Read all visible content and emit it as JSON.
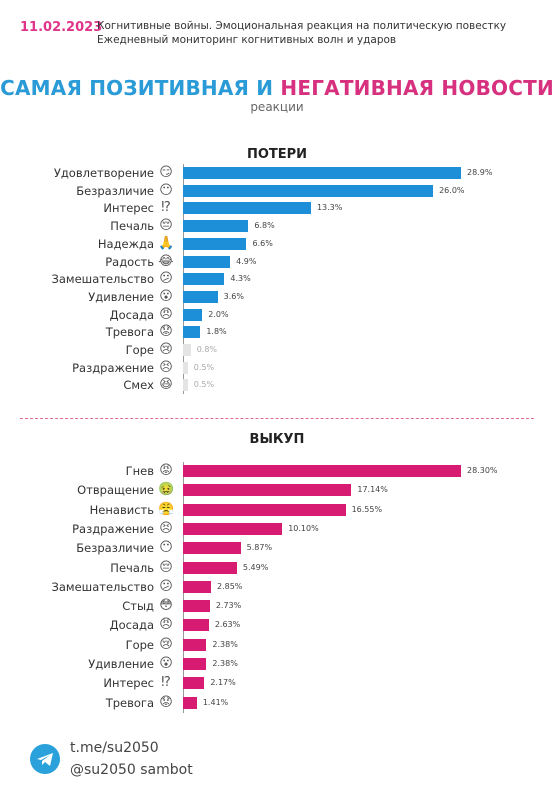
{
  "header": {
    "date": "11.02.2023",
    "line1": "Когнитивные войны. Эмоциональная реакция на политическую повестку",
    "line2": "Ежедневный мониторинг когнитивных волн и ударов"
  },
  "title_part1": "САМАЯ ПОЗИТИВНАЯ И ",
  "title_part2": "НЕГАТИВНАЯ НОВОСТИ",
  "subtitle": "реакции",
  "colors": {
    "date": "#e0338a",
    "title_gradient_start": "#2a9bd6",
    "title_gradient_end": "#d6307e",
    "blue_bar": "#1c8fd8",
    "pink_bar": "#d81b72",
    "small_bar": "#e4e4e4",
    "divider": "#e06a9a",
    "telegram": "#2aa1da"
  },
  "chart_data": [
    {
      "type": "bar",
      "orientation": "horizontal",
      "title": "ПОТЕРИ",
      "categories": [
        "Удовлетворение",
        "Безразличие",
        "Интерес",
        "Печаль",
        "Надежда",
        "Радость",
        "Замешательство",
        "Удивление",
        "Досада",
        "Тревога",
        "Горе",
        "Раздражение",
        "Смех"
      ],
      "icons": [
        "😏",
        "😶",
        "⁉",
        "😔",
        "🙏",
        "😂",
        "😕",
        "😮",
        "😠",
        "😟",
        "😢",
        "😣",
        "😆"
      ],
      "values": [
        28.9,
        26.0,
        13.3,
        6.8,
        6.6,
        4.9,
        4.3,
        3.6,
        2.0,
        1.8,
        0.8,
        0.5,
        0.5
      ],
      "value_labels": [
        "28.9%",
        "26.0%",
        "13.3%",
        "6.8%",
        "6.6%",
        "4.9%",
        "4.3%",
        "3.6%",
        "2.0%",
        "1.8%",
        "0.8%",
        "0.5%",
        "0.5%"
      ],
      "highlight_threshold": 1.0,
      "color": "#1c8fd8",
      "xlim": [
        0,
        30
      ]
    },
    {
      "type": "bar",
      "orientation": "horizontal",
      "title": "ВЫКУП",
      "categories": [
        "Гнев",
        "Отвращение",
        "Ненависть",
        "Раздражение",
        "Безразличие",
        "Печаль",
        "Замешательство",
        "Стыд",
        "Досада",
        "Горе",
        "Удивление",
        "Интерес",
        "Тревога"
      ],
      "icons": [
        "😡",
        "🤢",
        "😤",
        "😣",
        "😶",
        "😔",
        "😕",
        "😳",
        "😠",
        "😢",
        "😮",
        "⁉",
        "😟"
      ],
      "values": [
        28.3,
        17.14,
        16.55,
        10.1,
        5.87,
        5.49,
        2.85,
        2.73,
        2.63,
        2.38,
        2.38,
        2.17,
        1.41
      ],
      "value_labels": [
        "28.30%",
        "17.14%",
        "16.55%",
        "10.10%",
        "5.87%",
        "5.49%",
        "2.85%",
        "2.73%",
        "2.63%",
        "2.38%",
        "2.38%",
        "2.17%",
        "1.41%"
      ],
      "highlight_threshold": 0,
      "color": "#d81b72",
      "xlim": [
        0,
        30
      ]
    }
  ],
  "footer": {
    "link": "t.me/su2050",
    "bot": "@su2050 sambot"
  }
}
